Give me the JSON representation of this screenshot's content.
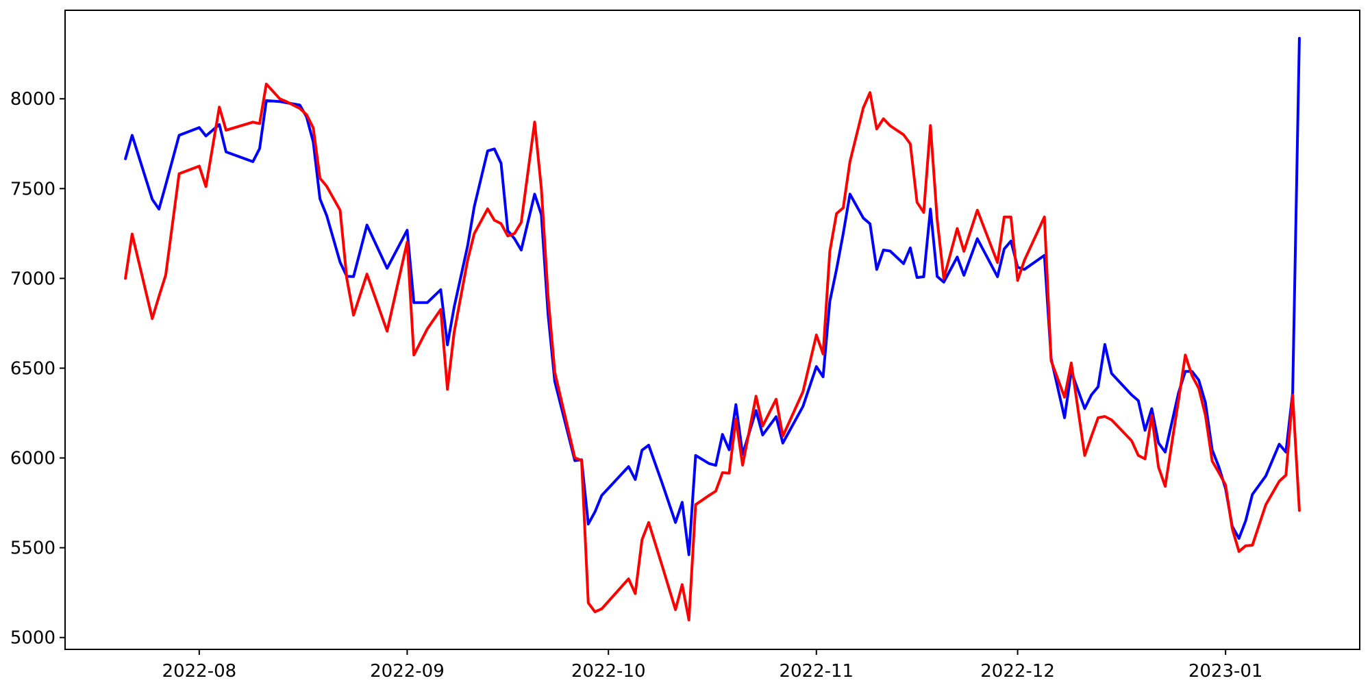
{
  "chart_data": {
    "type": "line",
    "title": "",
    "xlabel": "",
    "ylabel": "",
    "grid": false,
    "legend": "none",
    "background_color": "#ffffff",
    "axis_color": "#000000",
    "x_axis": {
      "tick_dates": [
        "2022-08-01",
        "2022-09-01",
        "2022-10-01",
        "2022-11-01",
        "2022-12-01",
        "2023-01-01"
      ],
      "tick_labels": [
        "2022-08",
        "2022-09",
        "2022-10",
        "2022-11",
        "2022-12",
        "2023-01"
      ],
      "xlim": [
        "2022-07-12",
        "2023-01-21"
      ]
    },
    "y_axis": {
      "ticks": [
        5000,
        5500,
        6000,
        6500,
        7000,
        7500,
        8000
      ],
      "tick_labels": [
        "5000",
        "5500",
        "6000",
        "6500",
        "7000",
        "7500",
        "8000"
      ],
      "ylim": [
        4934,
        8493
      ]
    },
    "series": [
      {
        "name": "blue-series",
        "color": "#0000ff",
        "line_width": 4
      },
      {
        "name": "red-series",
        "color": "#ff0000",
        "line_width": 4
      }
    ],
    "rows": [
      [
        "2022-07-21",
        7666,
        7000
      ],
      [
        "2022-07-22",
        7797,
        7247
      ],
      [
        "2022-07-25",
        7440,
        6776
      ],
      [
        "2022-07-26",
        7386,
        6900
      ],
      [
        "2022-07-27",
        7520,
        7018
      ],
      [
        "2022-07-29",
        7797,
        7583
      ],
      [
        "2022-08-01",
        7840,
        7625
      ],
      [
        "2022-08-02",
        7793,
        7511
      ],
      [
        "2022-08-04",
        7857,
        7954
      ],
      [
        "2022-08-05",
        7704,
        7825
      ],
      [
        "2022-08-09",
        7650,
        7870
      ],
      [
        "2022-08-10",
        7723,
        7862
      ],
      [
        "2022-08-11",
        7990,
        8082
      ],
      [
        "2022-08-13",
        7985,
        8000
      ],
      [
        "2022-08-14",
        7978,
        7984
      ],
      [
        "2022-08-16",
        7965,
        7946
      ],
      [
        "2022-08-17",
        7900,
        7912
      ],
      [
        "2022-08-18",
        7760,
        7838
      ],
      [
        "2022-08-19",
        7443,
        7558
      ],
      [
        "2022-08-20",
        7350,
        7513
      ],
      [
        "2022-08-22",
        7090,
        7380
      ],
      [
        "2022-08-23",
        7011,
        6998
      ],
      [
        "2022-08-24",
        7010,
        6795
      ],
      [
        "2022-08-26",
        7297,
        7024
      ],
      [
        "2022-08-29",
        7056,
        6706
      ],
      [
        "2022-09-01",
        7268,
        7202
      ],
      [
        "2022-09-02",
        6865,
        6573
      ],
      [
        "2022-09-04",
        6865,
        6719
      ],
      [
        "2022-09-06",
        6937,
        6827
      ],
      [
        "2022-09-07",
        6630,
        6382
      ],
      [
        "2022-09-08",
        6840,
        6700
      ],
      [
        "2022-09-10",
        7180,
        7100
      ],
      [
        "2022-09-11",
        7400,
        7250
      ],
      [
        "2022-09-13",
        7710,
        7387
      ],
      [
        "2022-09-14",
        7721,
        7324
      ],
      [
        "2022-09-15",
        7641,
        7305
      ],
      [
        "2022-09-16",
        7266,
        7236
      ],
      [
        "2022-09-17",
        7221,
        7250
      ],
      [
        "2022-09-18",
        7158,
        7312
      ],
      [
        "2022-09-20",
        7469,
        7871
      ],
      [
        "2022-09-21",
        7355,
        7500
      ],
      [
        "2022-09-22",
        6800,
        6900
      ],
      [
        "2022-09-23",
        6426,
        6477
      ],
      [
        "2022-09-26",
        5985,
        6000
      ],
      [
        "2022-09-27",
        5990,
        5987
      ],
      [
        "2022-09-28",
        5632,
        5193
      ],
      [
        "2022-09-29",
        5700,
        5143
      ],
      [
        "2022-09-30",
        5791,
        5160
      ],
      [
        "2022-10-04",
        5952,
        5327
      ],
      [
        "2022-10-05",
        5880,
        5245
      ],
      [
        "2022-10-06",
        6043,
        5544
      ],
      [
        "2022-10-07",
        6071,
        5641
      ],
      [
        "2022-10-09",
        5860,
        5400
      ],
      [
        "2022-10-11",
        5641,
        5155
      ],
      [
        "2022-10-12",
        5753,
        5295
      ],
      [
        "2022-10-13",
        5461,
        5098
      ],
      [
        "2022-10-14",
        6014,
        5740
      ],
      [
        "2022-10-16",
        5969,
        5791
      ],
      [
        "2022-10-17",
        5959,
        5815
      ],
      [
        "2022-10-18",
        6131,
        5918
      ],
      [
        "2022-10-19",
        6045,
        5915
      ],
      [
        "2022-10-20",
        6297,
        6217
      ],
      [
        "2022-10-21",
        6020,
        5960
      ],
      [
        "2022-10-23",
        6264,
        6344
      ],
      [
        "2022-10-24",
        6128,
        6178
      ],
      [
        "2022-10-26",
        6230,
        6327
      ],
      [
        "2022-10-27",
        6083,
        6121
      ],
      [
        "2022-10-30",
        6287,
        6369
      ],
      [
        "2022-11-01",
        6509,
        6685
      ],
      [
        "2022-11-02",
        6452,
        6579
      ],
      [
        "2022-11-03",
        6871,
        7150
      ],
      [
        "2022-11-04",
        7050,
        7361
      ],
      [
        "2022-11-05",
        7250,
        7393
      ],
      [
        "2022-11-06",
        7469,
        7650
      ],
      [
        "2022-11-08",
        7336,
        7950
      ],
      [
        "2022-11-09",
        7304,
        8035
      ],
      [
        "2022-11-10",
        7050,
        7832
      ],
      [
        "2022-11-11",
        7158,
        7889
      ],
      [
        "2022-11-12",
        7152,
        7850
      ],
      [
        "2022-11-14",
        7082,
        7800
      ],
      [
        "2022-11-15",
        7170,
        7749
      ],
      [
        "2022-11-16",
        7005,
        7424
      ],
      [
        "2022-11-17",
        7009,
        7367
      ],
      [
        "2022-11-18",
        7386,
        7851
      ],
      [
        "2022-11-19",
        7011,
        7329
      ],
      [
        "2022-11-20",
        6979,
        6999
      ],
      [
        "2022-11-22",
        7119,
        7278
      ],
      [
        "2022-11-23",
        7017,
        7151
      ],
      [
        "2022-11-25",
        7221,
        7380
      ],
      [
        "2022-11-28",
        7009,
        7088
      ],
      [
        "2022-11-29",
        7164,
        7342
      ],
      [
        "2022-11-30",
        7208,
        7342
      ],
      [
        "2022-12-01",
        7062,
        6989
      ],
      [
        "2022-12-02",
        7050,
        7100
      ],
      [
        "2022-12-05",
        7128,
        7342
      ],
      [
        "2022-12-06",
        6554,
        6541
      ],
      [
        "2022-12-08",
        6224,
        6338
      ],
      [
        "2022-12-09",
        6482,
        6529
      ],
      [
        "2022-12-11",
        6275,
        6014
      ],
      [
        "2022-12-12",
        6351,
        6120
      ],
      [
        "2022-12-13",
        6396,
        6224
      ],
      [
        "2022-12-14",
        6632,
        6231
      ],
      [
        "2022-12-15",
        6471,
        6212
      ],
      [
        "2022-12-18",
        6351,
        6096
      ],
      [
        "2022-12-19",
        6319,
        6014
      ],
      [
        "2022-12-20",
        6154,
        5995
      ],
      [
        "2022-12-21",
        6275,
        6237
      ],
      [
        "2022-12-22",
        6084,
        5950
      ],
      [
        "2022-12-23",
        6033,
        5842
      ],
      [
        "2022-12-25",
        6364,
        6325
      ],
      [
        "2022-12-26",
        6482,
        6573
      ],
      [
        "2022-12-27",
        6482,
        6458
      ],
      [
        "2022-12-28",
        6434,
        6388
      ],
      [
        "2022-12-29",
        6307,
        6237
      ],
      [
        "2022-12-30",
        6045,
        5983
      ],
      [
        "2022-12-31",
        5950,
        5918
      ],
      [
        "2023-01-01",
        5830,
        5850
      ],
      [
        "2023-01-02",
        5619,
        5606
      ],
      [
        "2023-01-03",
        5552,
        5479
      ],
      [
        "2023-01-04",
        5650,
        5511
      ],
      [
        "2023-01-05",
        5797,
        5514
      ],
      [
        "2023-01-07",
        5900,
        5740
      ],
      [
        "2023-01-09",
        6077,
        5870
      ],
      [
        "2023-01-10",
        6033,
        5905
      ],
      [
        "2023-01-11",
        6364,
        6350
      ],
      [
        "2023-01-12",
        8337,
        5708
      ]
    ]
  }
}
